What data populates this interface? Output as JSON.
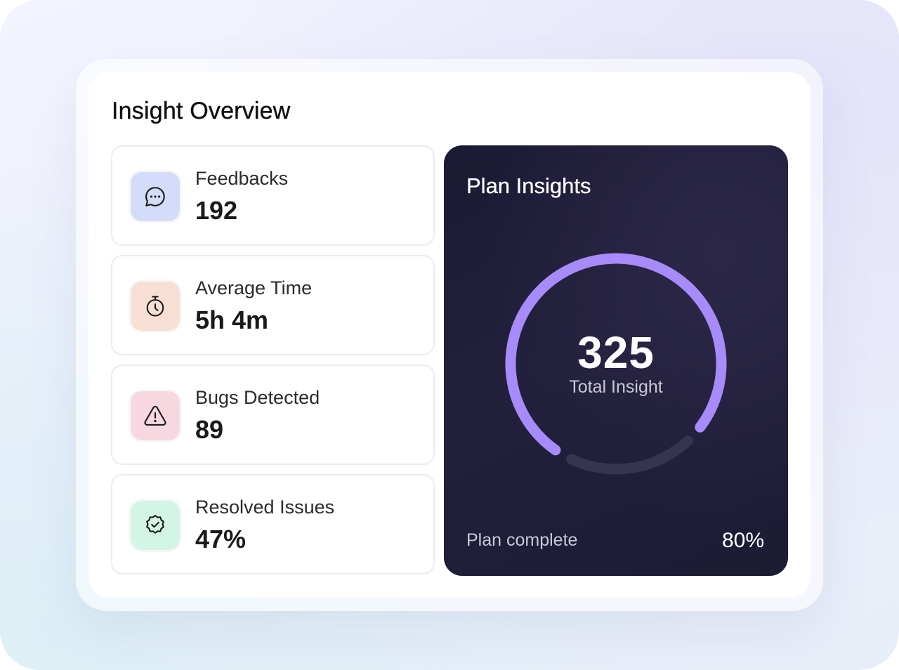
{
  "title": "Insight Overview",
  "stats": [
    {
      "label": "Feedbacks",
      "value": "192",
      "icon": "chat-bubble-icon",
      "color": "#d5dcfa"
    },
    {
      "label": "Average Time",
      "value": "5h 4m",
      "icon": "stopwatch-icon",
      "color": "#f7e0d3"
    },
    {
      "label": "Bugs Detected",
      "value": "89",
      "icon": "warning-triangle-icon",
      "color": "#f7d8e1"
    },
    {
      "label": "Resolved Issues",
      "value": "47%",
      "icon": "verified-badge-icon",
      "color": "#d3f5e6"
    }
  ],
  "plan": {
    "title": "Plan Insights",
    "total": "325",
    "total_label": "Total Insight",
    "complete_label": "Plan complete",
    "complete_value": "80%",
    "progress": 0.8,
    "progress_color": "#a78bfa",
    "track_color": "#36344f"
  }
}
